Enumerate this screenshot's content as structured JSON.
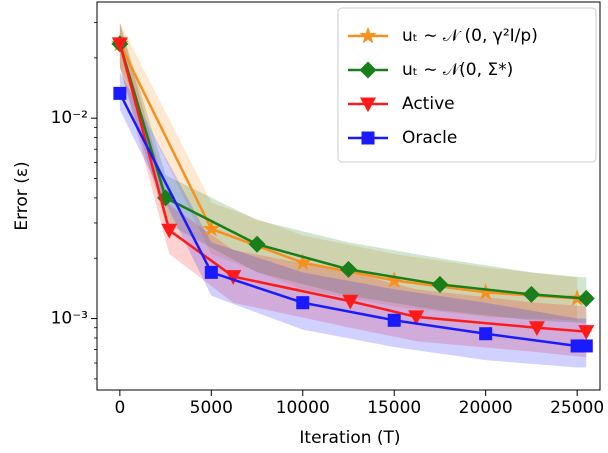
{
  "chart_data": {
    "type": "line",
    "xlabel": "Iteration (T)",
    "ylabel": "Error (ε)",
    "xlim": [
      -1250,
      26250
    ],
    "ylim": [
      0.00044,
      0.038
    ],
    "yscale": "log",
    "xticks": [
      0,
      5000,
      10000,
      15000,
      20000,
      25000
    ],
    "yticks": [
      {
        "value": 0.01,
        "label": "10⁻²"
      },
      {
        "value": 0.001,
        "label": "10⁻³"
      }
    ],
    "legend": "upper right",
    "series": [
      {
        "name": "uₜ ∼ 𝒩 (0, γ²I/p)",
        "color": "#f7901e",
        "marker": "star",
        "x": [
          0,
          5000,
          10000,
          15000,
          20000,
          25000
        ],
        "values": [
          0.0235,
          0.0028,
          0.0019,
          0.00155,
          0.00135,
          0.00126
        ],
        "lower": [
          0.018,
          0.0021,
          0.0014,
          0.00115,
          0.00102,
          0.00098
        ],
        "upper": [
          0.03,
          0.0038,
          0.0026,
          0.0021,
          0.0018,
          0.0016
        ]
      },
      {
        "name": "uₜ ∼ 𝒩(0, Σ*)",
        "color": "#1a7f1a",
        "marker": "diamond",
        "x": [
          0,
          2500,
          7500,
          12500,
          17500,
          22500,
          25500
        ],
        "values": [
          0.0235,
          0.004,
          0.00235,
          0.00176,
          0.00148,
          0.00132,
          0.00126
        ],
        "lower": [
          0.018,
          0.003,
          0.0017,
          0.0013,
          0.0011,
          0.00098,
          0.00095
        ],
        "upper": [
          0.03,
          0.0052,
          0.0031,
          0.0024,
          0.002,
          0.0017,
          0.0016
        ]
      },
      {
        "name": "Active",
        "color": "#ff1a1a",
        "marker": "triangle",
        "x": [
          0,
          2700,
          6200,
          12600,
          16200,
          22800,
          25500
        ],
        "values": [
          0.0235,
          0.00276,
          0.00162,
          0.00122,
          0.00102,
          0.0009,
          0.00086
        ],
        "lower": [
          0.018,
          0.0021,
          0.0012,
          0.0009,
          0.00077,
          0.00068,
          0.00064
        ],
        "upper": [
          0.03,
          0.0037,
          0.0022,
          0.0017,
          0.0014,
          0.0012,
          0.00115
        ]
      },
      {
        "name": "Oracle",
        "color": "#1a1aff",
        "marker": "square",
        "x": [
          0,
          5000,
          10000,
          15000,
          20000,
          25000,
          25500
        ],
        "values": [
          0.0133,
          0.0017,
          0.0012,
          0.00098,
          0.00084,
          0.00073,
          0.00073
        ],
        "lower": [
          0.011,
          0.0013,
          0.00088,
          0.00072,
          0.00062,
          0.00057,
          0.00057
        ],
        "upper": [
          0.017,
          0.0024,
          0.0017,
          0.0014,
          0.0012,
          0.001,
          0.001
        ]
      }
    ]
  }
}
